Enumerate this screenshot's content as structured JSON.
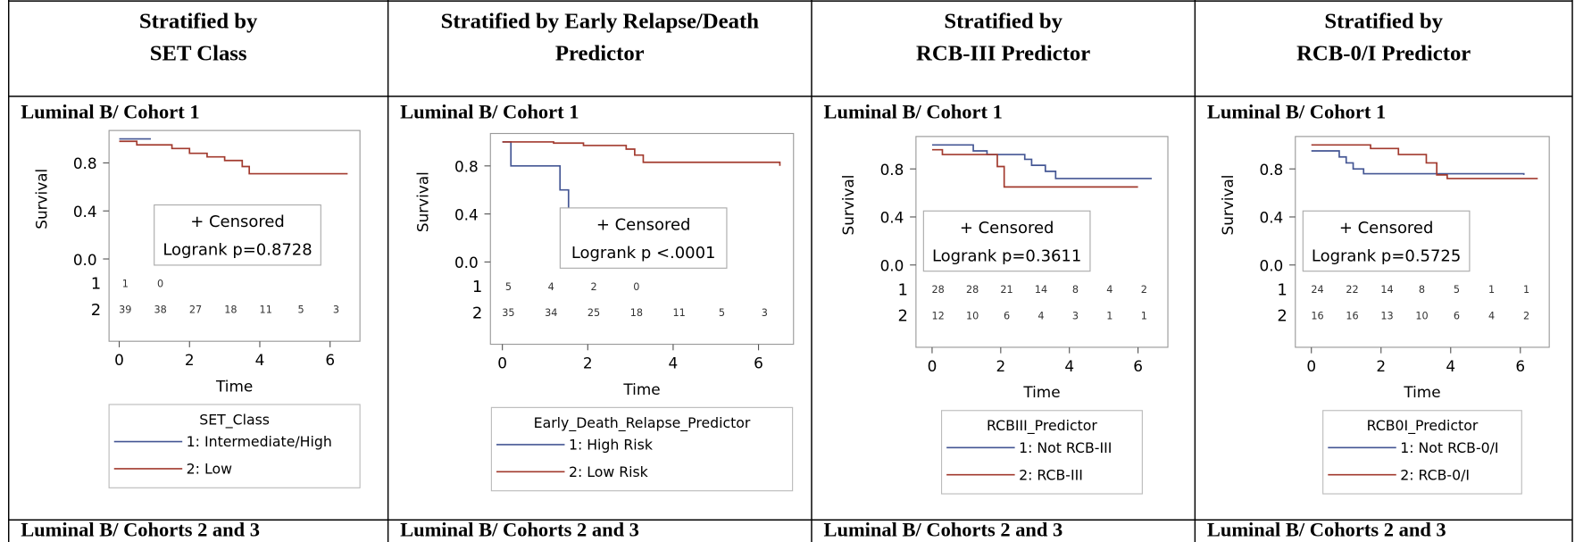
{
  "table": {
    "headers": [
      [
        "Stratified by",
        "SET Class"
      ],
      [
        "Stratified by Early Relapse/Death",
        "Predictor"
      ],
      [
        "Stratified by",
        "RCB-III Predictor"
      ],
      [
        "Stratified by",
        "RCB-0/I Predictor"
      ]
    ],
    "rows": [
      {
        "cells": [
          {
            "label": "Luminal B/ Cohort 1",
            "chart": {
              "type": "line",
              "step": true,
              "y_label": "Survival",
              "x_label": "Time",
              "xlim": [
                -0.29,
                6.85
              ],
              "ylim": [
                0,
                1.07
              ],
              "xticks": [
                0,
                2,
                4,
                6
              ],
              "yticks": [
                {
                  "value": 0,
                  "label": "0.0"
                },
                {
                  "value": 0.4,
                  "label": "0.4"
                },
                {
                  "value": 0.8,
                  "label": "0.8"
                }
              ],
              "censored_label": "+ Censored",
              "test_label": "Logrank p=0.8728",
              "legend_title": "SET_Class",
              "series": [
                {
                  "name": "1: Intermediate/High",
                  "color": "#445694",
                  "risk_label": "1",
                  "at_risk": [
                    1,
                    0
                  ],
                  "x": [
                    0,
                    0.9
                  ],
                  "values": [
                    1,
                    1
                  ]
                },
                {
                  "name": "2: Low",
                  "color": "#a23a2e",
                  "risk_label": "2",
                  "at_risk": [
                    39,
                    38,
                    27,
                    18,
                    11,
                    5,
                    3
                  ],
                  "x": [
                    0,
                    0.5,
                    1.5,
                    2,
                    2.5,
                    3,
                    3.5,
                    3.7,
                    6.5
                  ],
                  "values": [
                    0.98,
                    0.95,
                    0.92,
                    0.88,
                    0.85,
                    0.82,
                    0.77,
                    0.71,
                    0.71
                  ]
                }
              ]
            }
          },
          {
            "label": "Luminal B/ Cohort 1",
            "chart": {
              "type": "line",
              "step": true,
              "y_label": "Survival",
              "x_label": "Time",
              "xlim": [
                -0.28,
                6.82
              ],
              "ylim": [
                0,
                1.07
              ],
              "xticks": [
                0,
                2,
                4,
                6
              ],
              "yticks": [
                {
                  "value": 0,
                  "label": "0.0"
                },
                {
                  "value": 0.4,
                  "label": "0.4"
                },
                {
                  "value": 0.8,
                  "label": "0.8"
                }
              ],
              "censored_label": "+ Censored",
              "test_label": "Logrank p <.0001",
              "legend_title": "Early_Death_Relapse_Predictor",
              "series": [
                {
                  "name": "1: High Risk",
                  "color": "#445694",
                  "risk_label": "1",
                  "at_risk": [
                    5,
                    4,
                    2,
                    0
                  ],
                  "x": [
                    0,
                    0.2,
                    1.35,
                    1.55
                  ],
                  "values": [
                    1,
                    0.8,
                    0.6,
                    0.4
                  ]
                },
                {
                  "name": "2: Low Risk",
                  "color": "#a23a2e",
                  "risk_label": "2",
                  "at_risk": [
                    35,
                    34,
                    25,
                    18,
                    11,
                    5,
                    3
                  ],
                  "x": [
                    0,
                    1.2,
                    1.9,
                    2.9,
                    3.1,
                    3.3,
                    6.5
                  ],
                  "values": [
                    1,
                    0.99,
                    0.97,
                    0.94,
                    0.89,
                    0.83,
                    0.8
                  ]
                }
              ]
            }
          },
          {
            "label": "Luminal B/ Cohort 1",
            "chart": {
              "type": "line",
              "step": true,
              "y_label": "Survival",
              "x_label": "Time",
              "xlim": [
                -0.47,
                6.87
              ],
              "ylim": [
                0,
                1.07
              ],
              "xticks": [
                0,
                2,
                4,
                6
              ],
              "yticks": [
                {
                  "value": 0,
                  "label": "0.0"
                },
                {
                  "value": 0.4,
                  "label": "0.4"
                },
                {
                  "value": 0.8,
                  "label": "0.8"
                }
              ],
              "censored_label": "+ Censored",
              "test_label": "Logrank p=0.3611",
              "legend_title": "RCBIII_Predictor",
              "series": [
                {
                  "name": "1: Not RCB-III",
                  "color": "#445694",
                  "risk_label": "1",
                  "at_risk": [
                    28,
                    28,
                    21,
                    14,
                    8,
                    4,
                    2
                  ],
                  "x": [
                    0,
                    1.2,
                    1.6,
                    2.5,
                    2.7,
                    2.9,
                    3.3,
                    3.6,
                    6.4
                  ],
                  "values": [
                    1,
                    0.95,
                    0.92,
                    0.92,
                    0.88,
                    0.83,
                    0.78,
                    0.72,
                    0.72
                  ]
                },
                {
                  "name": "2: RCB-III",
                  "color": "#a23a2e",
                  "risk_label": "2",
                  "at_risk": [
                    12,
                    10,
                    6,
                    4,
                    3,
                    1,
                    1
                  ],
                  "x": [
                    0,
                    0.3,
                    1.9,
                    2.1,
                    6
                  ],
                  "values": [
                    0.96,
                    0.92,
                    0.82,
                    0.65,
                    0.65
                  ]
                }
              ]
            }
          },
          {
            "label": "Luminal B/ Cohort 1",
            "chart": {
              "type": "line",
              "step": true,
              "y_label": "Survival",
              "x_label": "Time",
              "xlim": [
                -0.46,
                6.83
              ],
              "ylim": [
                0,
                1.07
              ],
              "xticks": [
                0,
                2,
                4,
                6
              ],
              "yticks": [
                {
                  "value": 0,
                  "label": "0.0"
                },
                {
                  "value": 0.4,
                  "label": "0.4"
                },
                {
                  "value": 0.8,
                  "label": "0.8"
                }
              ],
              "censored_label": "+ Censored",
              "test_label": "Logrank p=0.5725",
              "legend_title": "RCB0I_Predictor",
              "series": [
                {
                  "name": "1: Not RCB-0/I",
                  "color": "#445694",
                  "risk_label": "1",
                  "at_risk": [
                    24,
                    22,
                    14,
                    8,
                    5,
                    1,
                    1
                  ],
                  "x": [
                    0,
                    0.8,
                    1,
                    1.2,
                    1.5,
                    6.1
                  ],
                  "values": [
                    0.95,
                    0.9,
                    0.85,
                    0.8,
                    0.76,
                    0.75
                  ]
                },
                {
                  "name": "2: RCB-0/I",
                  "color": "#a23a2e",
                  "risk_label": "2",
                  "at_risk": [
                    16,
                    16,
                    13,
                    10,
                    6,
                    4,
                    2
                  ],
                  "x": [
                    0,
                    1.7,
                    2.5,
                    3.3,
                    3.6,
                    3.9,
                    6.5
                  ],
                  "values": [
                    1,
                    0.97,
                    0.92,
                    0.85,
                    0.75,
                    0.72,
                    0.72
                  ]
                }
              ]
            }
          }
        ]
      },
      {
        "cells": [
          {
            "label": "Luminal B/ Cohorts 2 and 3"
          },
          {
            "label": "Luminal B/ Cohorts 2 and 3"
          },
          {
            "label": "Luminal B/ Cohorts 2 and 3"
          },
          {
            "label": "Luminal B/ Cohorts 2 and 3"
          }
        ]
      }
    ]
  }
}
